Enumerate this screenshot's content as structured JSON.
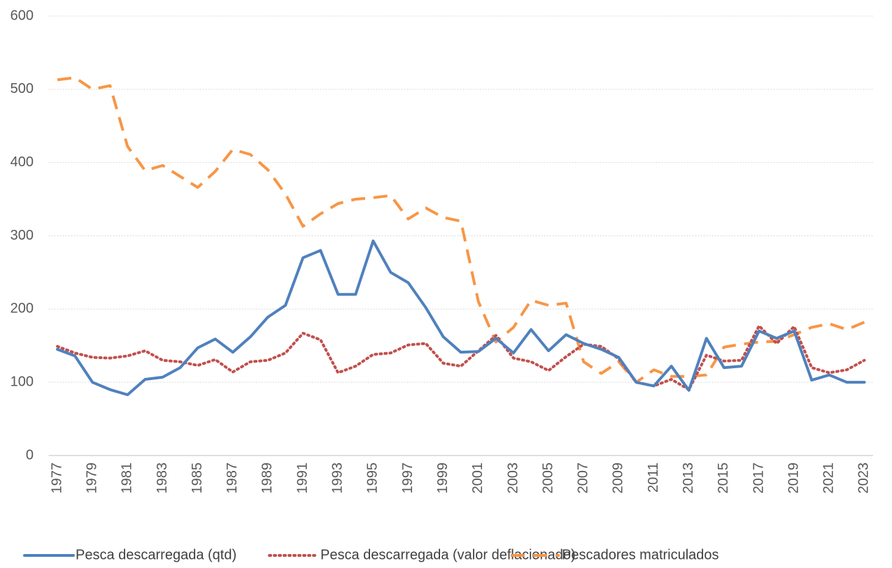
{
  "chart_data": {
    "type": "line",
    "categories": [
      "1977",
      null,
      "1979",
      null,
      "1981",
      null,
      "1983",
      null,
      "1985",
      null,
      "1987",
      null,
      "1989",
      null,
      "1991",
      null,
      "1993",
      null,
      "1995",
      null,
      "1997",
      null,
      "1999",
      null,
      "2001",
      null,
      "2003",
      null,
      "2005",
      null,
      "2007",
      null,
      "2009",
      null,
      "2011",
      null,
      "2013",
      null,
      "2015",
      null,
      "2017",
      null,
      "2019",
      null,
      "2021",
      null,
      "2023"
    ],
    "series": [
      {
        "name": "Pesca descarregada (qtd)",
        "color": "#4f81bd",
        "dash": "solid",
        "values": [
          145,
          136,
          100,
          90,
          83,
          104,
          107,
          120,
          147,
          159,
          141,
          162,
          189,
          205,
          270,
          280,
          220,
          220,
          293,
          250,
          236,
          202,
          162,
          141,
          142,
          160,
          140,
          172,
          143,
          165,
          153,
          145,
          134,
          100,
          95,
          122,
          89,
          160,
          120,
          122,
          170,
          160,
          170,
          103,
          110,
          100,
          100
        ]
      },
      {
        "name": "Pesca descarregada (valor deflacionado)",
        "color": "#c0504d",
        "dash": "dotted",
        "values": [
          149,
          140,
          134,
          133,
          136,
          143,
          130,
          128,
          123,
          131,
          114,
          128,
          130,
          140,
          167,
          158,
          113,
          122,
          138,
          140,
          151,
          153,
          126,
          122,
          143,
          164,
          133,
          128,
          116,
          135,
          152,
          149,
          132,
          100,
          95,
          104,
          90,
          137,
          129,
          130,
          177,
          153,
          176,
          120,
          113,
          117,
          130
        ]
      },
      {
        "name": "Pescadores matriculados",
        "color": "#f79646",
        "dash": "dashed",
        "values": [
          513,
          516,
          500,
          505,
          422,
          389,
          396,
          381,
          366,
          388,
          418,
          411,
          390,
          357,
          313,
          330,
          344,
          350,
          352,
          355,
          323,
          338,
          325,
          320,
          210,
          155,
          175,
          212,
          205,
          208,
          128,
          112,
          128,
          100,
          117,
          108,
          108,
          110,
          148,
          152,
          155,
          156,
          165,
          175,
          180,
          172,
          182
        ]
      }
    ],
    "ylim": [
      0,
      600
    ],
    "yticks": [
      0,
      100,
      200,
      300,
      400,
      500,
      600
    ],
    "grid": true,
    "legend": "bottom"
  }
}
